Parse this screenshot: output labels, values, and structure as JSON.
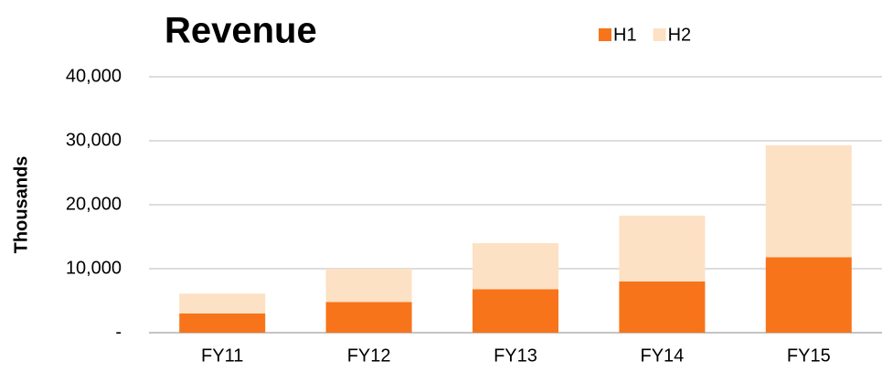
{
  "chart_data": {
    "type": "stacked_bar",
    "title": "Revenue",
    "y_label": "Thousands",
    "categories": [
      "FY11",
      "FY12",
      "FY13",
      "FY14",
      "FY15"
    ],
    "series": [
      {
        "name": "H1",
        "color": "#f7741a",
        "values": [
          3000,
          4800,
          6800,
          8000,
          11800
        ]
      },
      {
        "name": "H2",
        "color": "#fde1c4",
        "values": [
          3100,
          5200,
          7200,
          10300,
          17500
        ]
      }
    ],
    "ylim": [
      0,
      40000
    ],
    "yticks": [
      {
        "value": 0,
        "label": "-"
      },
      {
        "value": 10000,
        "label": "10,000"
      },
      {
        "value": 20000,
        "label": "20,000"
      },
      {
        "value": 30000,
        "label": "30,000"
      },
      {
        "value": 40000,
        "label": "40,000"
      }
    ],
    "grid": true,
    "legend": "top"
  }
}
